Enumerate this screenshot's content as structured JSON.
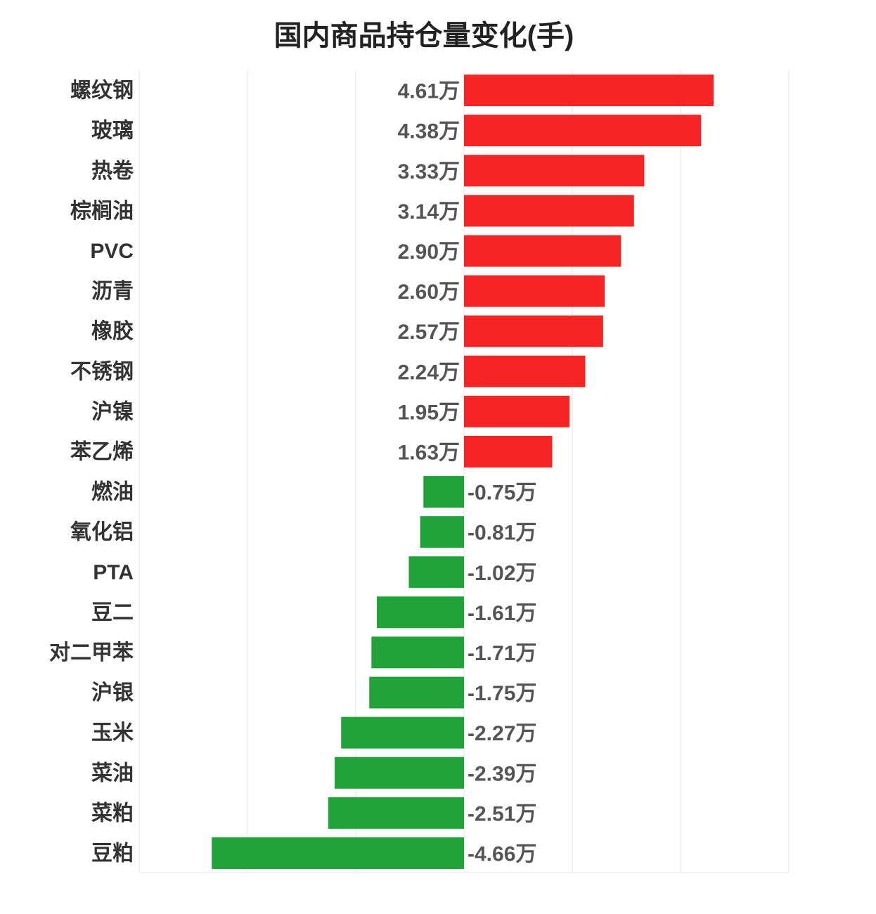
{
  "chart_data": {
    "type": "bar",
    "orientation": "horizontal",
    "title": "国内商品持仓量变化(手)",
    "xlabel": "",
    "ylabel": "",
    "value_unit": "万",
    "categories": [
      "螺纹钢",
      "玻璃",
      "热卷",
      "棕榈油",
      "PVC",
      "沥青",
      "橡胶",
      "不锈钢",
      "沪镍",
      "苯乙烯",
      "燃油",
      "氧化铝",
      "PTA",
      "豆二",
      "对二甲苯",
      "沪银",
      "玉米",
      "菜油",
      "菜粕",
      "豆粕"
    ],
    "values": [
      4.61,
      4.38,
      3.33,
      3.14,
      2.9,
      2.6,
      2.57,
      2.24,
      1.95,
      1.63,
      -0.75,
      -0.81,
      -1.02,
      -1.61,
      -1.71,
      -1.75,
      -2.27,
      -2.39,
      -2.51,
      -4.66
    ],
    "value_labels": [
      "4.61万",
      "4.38万",
      "3.33万",
      "3.14万",
      "2.90万",
      "2.60万",
      "2.57万",
      "2.24万",
      "1.95万",
      "1.63万",
      "-0.75万",
      "-0.81万",
      "-1.02万",
      "-1.61万",
      "-1.71万",
      "-1.75万",
      "-2.27万",
      "-2.39万",
      "-2.51万",
      "-4.66万"
    ],
    "xlim": [
      -6,
      6
    ],
    "grid": true,
    "positive_color": "#f52525",
    "negative_color": "#21a33a"
  }
}
